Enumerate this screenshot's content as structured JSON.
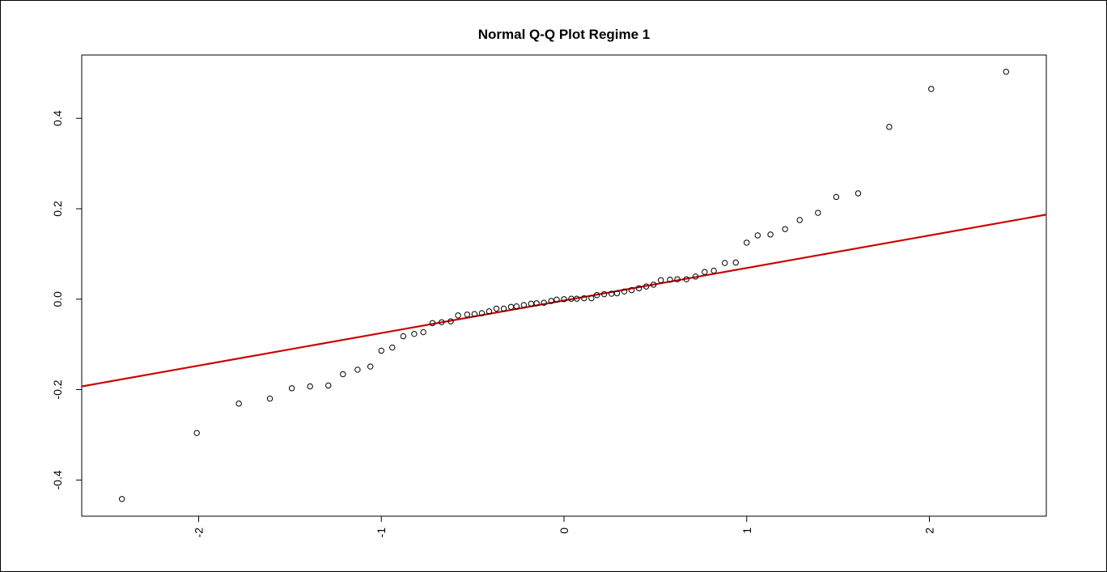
{
  "chart_data": {
    "type": "scatter",
    "title": "Normal Q-Q Plot Regime 1",
    "xlabel": "",
    "ylabel": "",
    "xlim": [
      -2.64,
      2.64
    ],
    "ylim": [
      -0.48,
      0.54
    ],
    "x_ticks": [
      -2,
      -1,
      0,
      1,
      2
    ],
    "y_ticks": [
      -0.4,
      -0.2,
      0.0,
      0.2,
      0.4
    ],
    "x_tick_labels": [
      "-2",
      "-1",
      "0",
      "1",
      "2"
    ],
    "y_tick_labels": [
      "-0.4",
      "-0.2",
      "0.0",
      "0.2",
      "0.4"
    ],
    "grid": false,
    "colors": {
      "points": "#000000",
      "line": "#cc0000"
    },
    "reference_line": {
      "x": [
        -2.64,
        2.64
      ],
      "y": [
        -0.193,
        0.187
      ]
    },
    "points": [
      {
        "x": -2.42,
        "y": -0.442
      },
      {
        "x": -2.01,
        "y": -0.296
      },
      {
        "x": -1.78,
        "y": -0.231
      },
      {
        "x": -1.61,
        "y": -0.22
      },
      {
        "x": -1.49,
        "y": -0.197
      },
      {
        "x": -1.39,
        "y": -0.193
      },
      {
        "x": -1.29,
        "y": -0.191
      },
      {
        "x": -1.21,
        "y": -0.166
      },
      {
        "x": -1.13,
        "y": -0.156
      },
      {
        "x": -1.06,
        "y": -0.149
      },
      {
        "x": -1.0,
        "y": -0.114
      },
      {
        "x": -0.94,
        "y": -0.107
      },
      {
        "x": -0.88,
        "y": -0.082
      },
      {
        "x": -0.82,
        "y": -0.077
      },
      {
        "x": -0.77,
        "y": -0.073
      },
      {
        "x": -0.72,
        "y": -0.053
      },
      {
        "x": -0.67,
        "y": -0.051
      },
      {
        "x": -0.62,
        "y": -0.049
      },
      {
        "x": -0.58,
        "y": -0.036
      },
      {
        "x": -0.53,
        "y": -0.034
      },
      {
        "x": -0.49,
        "y": -0.033
      },
      {
        "x": -0.45,
        "y": -0.031
      },
      {
        "x": -0.41,
        "y": -0.027
      },
      {
        "x": -0.37,
        "y": -0.021
      },
      {
        "x": -0.33,
        "y": -0.021
      },
      {
        "x": -0.29,
        "y": -0.017
      },
      {
        "x": -0.26,
        "y": -0.016
      },
      {
        "x": -0.22,
        "y": -0.013
      },
      {
        "x": -0.18,
        "y": -0.01
      },
      {
        "x": -0.15,
        "y": -0.009
      },
      {
        "x": -0.11,
        "y": -0.008
      },
      {
        "x": -0.07,
        "y": -0.004
      },
      {
        "x": -0.04,
        "y": -0.001
      },
      {
        "x": 0.0,
        "y": 0.0
      },
      {
        "x": 0.04,
        "y": 0.001
      },
      {
        "x": 0.07,
        "y": 0.001
      },
      {
        "x": 0.11,
        "y": 0.002
      },
      {
        "x": 0.15,
        "y": 0.002
      },
      {
        "x": 0.18,
        "y": 0.009
      },
      {
        "x": 0.22,
        "y": 0.011
      },
      {
        "x": 0.26,
        "y": 0.012
      },
      {
        "x": 0.29,
        "y": 0.013
      },
      {
        "x": 0.33,
        "y": 0.017
      },
      {
        "x": 0.37,
        "y": 0.02
      },
      {
        "x": 0.41,
        "y": 0.024
      },
      {
        "x": 0.45,
        "y": 0.028
      },
      {
        "x": 0.49,
        "y": 0.032
      },
      {
        "x": 0.53,
        "y": 0.042
      },
      {
        "x": 0.58,
        "y": 0.043
      },
      {
        "x": 0.62,
        "y": 0.044
      },
      {
        "x": 0.67,
        "y": 0.044
      },
      {
        "x": 0.72,
        "y": 0.05
      },
      {
        "x": 0.77,
        "y": 0.06
      },
      {
        "x": 0.82,
        "y": 0.063
      },
      {
        "x": 0.88,
        "y": 0.08
      },
      {
        "x": 0.94,
        "y": 0.081
      },
      {
        "x": 1.0,
        "y": 0.125
      },
      {
        "x": 1.06,
        "y": 0.141
      },
      {
        "x": 1.13,
        "y": 0.143
      },
      {
        "x": 1.21,
        "y": 0.155
      },
      {
        "x": 1.29,
        "y": 0.175
      },
      {
        "x": 1.39,
        "y": 0.191
      },
      {
        "x": 1.49,
        "y": 0.226
      },
      {
        "x": 1.61,
        "y": 0.234
      },
      {
        "x": 1.78,
        "y": 0.381
      },
      {
        "x": 2.01,
        "y": 0.465
      },
      {
        "x": 2.42,
        "y": 0.503
      }
    ]
  }
}
